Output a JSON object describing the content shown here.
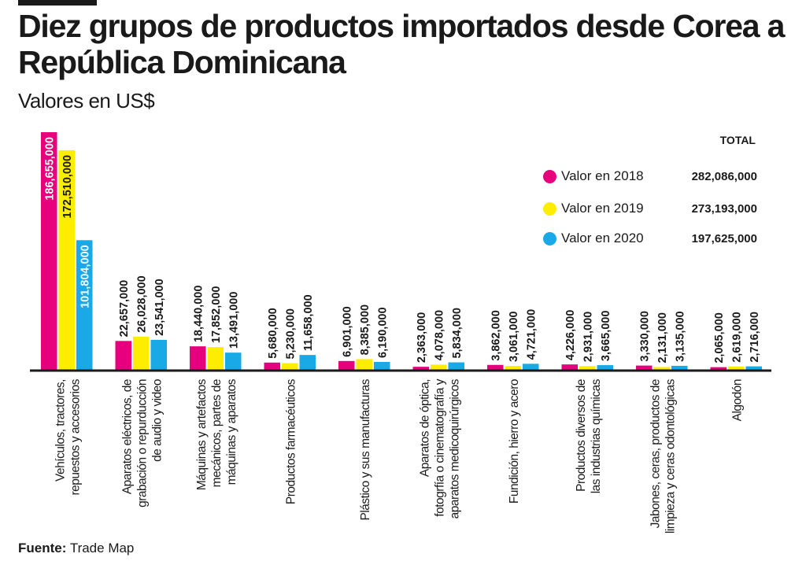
{
  "header": {
    "title": "Diez grupos de productos importados desde Corea a República Dominicana",
    "subtitle": "Valores en US$"
  },
  "legend": {
    "total_header": "TOTAL",
    "items": [
      {
        "label": "Valor en 2018",
        "color": "#e6007e",
        "total": "282,086,000"
      },
      {
        "label": "Valor en 2019",
        "color": "#ffed00",
        "total": "273,193,000"
      },
      {
        "label": "Valor en 2020",
        "color": "#19a9e6",
        "total": "197,625,000"
      }
    ]
  },
  "source": {
    "label": "Fuente:",
    "value": "Trade Map"
  },
  "chart_data": {
    "type": "bar",
    "title": "Diez grupos de productos importados desde Corea a República Dominicana",
    "subtitle": "Valores en US$",
    "xlabel": "",
    "ylabel": "",
    "ylim": [
      0,
      190000000
    ],
    "grid": false,
    "legend_position": "top-right",
    "categories": [
      [
        "Vehículos, tractores,",
        "repuestos y accesorios"
      ],
      [
        "Aparatos eléctricos, de",
        "grabación o repurducción",
        "de audio y video"
      ],
      [
        "Máquinas y artefactos",
        "mecánicos, partes de",
        "máquinas y aparatos"
      ],
      [
        "Productos farmacéuticos"
      ],
      [
        "Plástico y sus manufacturas"
      ],
      [
        "Aparatos de óptica,",
        "fotogrfía o cinematografía y",
        "aparatos medicoquirúrgicos"
      ],
      [
        "Fundición, hierro y acero"
      ],
      [
        "Productos diversos de",
        "las industrias químicas"
      ],
      [
        "Jabones, ceras, productos de",
        "limpieza y ceras odontológicas"
      ],
      [
        "Algodón"
      ]
    ],
    "series": [
      {
        "name": "Valor en 2018",
        "color": "#e6007e",
        "label_color": "#ffffff",
        "values": [
          186655000,
          22657000,
          18440000,
          5680000,
          6901000,
          2363000,
          3862000,
          4226000,
          3330000,
          2065000
        ],
        "labels": [
          "186,655,000",
          "22,657,000",
          "18,440,000",
          "5,680,000",
          "6,901,000",
          "2,363,000",
          "3,862,000",
          "4,226,000",
          "3,330,000",
          "2,065,000"
        ]
      },
      {
        "name": "Valor en 2019",
        "color": "#ffed00",
        "label_color": "#1a1a1a",
        "values": [
          172510000,
          26028000,
          17852000,
          5230000,
          8385000,
          4078000,
          3061000,
          2931000,
          2131000,
          2619000
        ],
        "labels": [
          "172,510,000",
          "26,028,000",
          "17,852,000",
          "5,230,000",
          "8,385,000",
          "4,078,000",
          "3,061,000",
          "2,931,000",
          "2,131,000",
          "2,619,000"
        ]
      },
      {
        "name": "Valor en 2020",
        "color": "#19a9e6",
        "label_color": "#ffffff",
        "values": [
          101804000,
          23541000,
          13491000,
          11658000,
          6190000,
          5834000,
          4721000,
          3665000,
          3135000,
          2716000
        ],
        "labels": [
          "101,804,000",
          "23,541,000",
          "13,491,000",
          "11,658,000",
          "6,190,000",
          "5,834,000",
          "4,721,000",
          "3,665,000",
          "3,135,000",
          "2,716,000"
        ]
      }
    ],
    "totals": {
      "Valor en 2018": 282086000,
      "Valor en 2019": 273193000,
      "Valor en 2020": 197625000
    }
  }
}
